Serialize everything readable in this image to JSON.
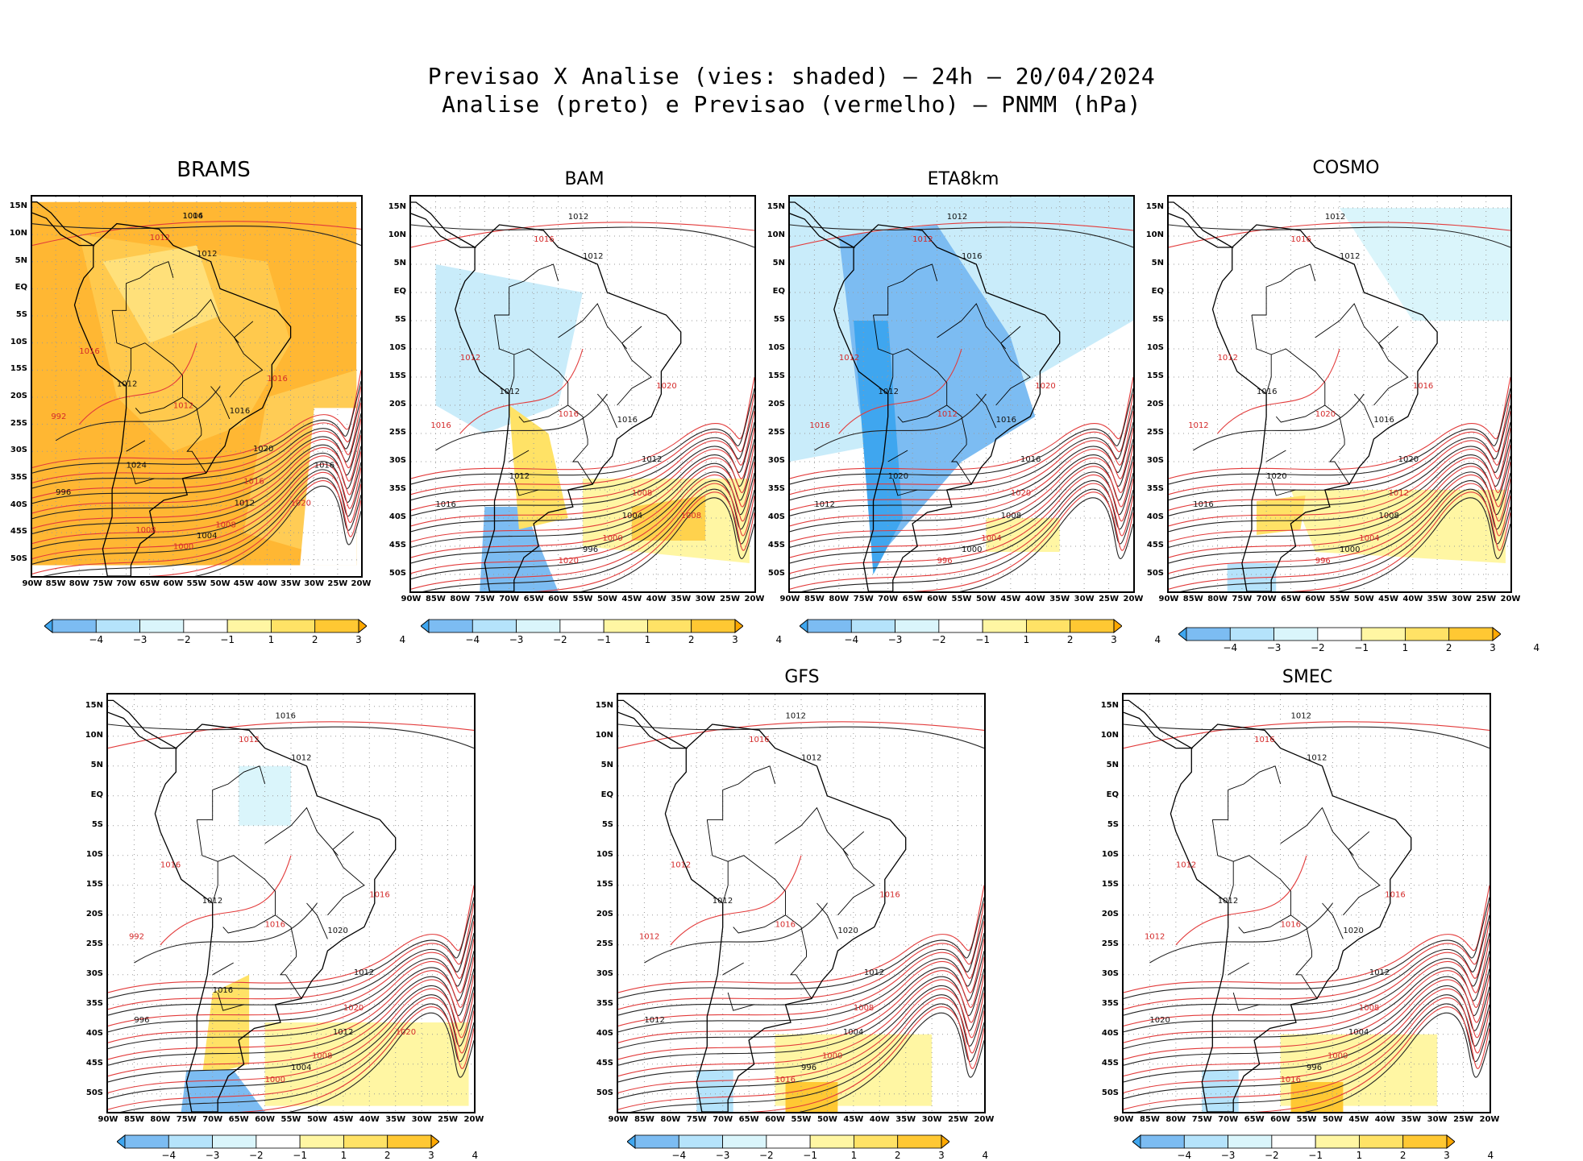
{
  "title": {
    "line1": "Previsao X Analise (vies: shaded) – 24h – 20/04/2024",
    "line2": "Analise (preto) e Previsao (vermelho) – PNMM (hPa)"
  },
  "lat_labels": [
    "15N",
    "10N",
    "5N",
    "EQ",
    "5S",
    "10S",
    "15S",
    "20S",
    "25S",
    "30S",
    "35S",
    "40S",
    "45S",
    "50S"
  ],
  "lon_labels": [
    "90W",
    "85W",
    "80W",
    "75W",
    "70W",
    "65W",
    "60W",
    "55W",
    "50W",
    "45W",
    "40W",
    "35W",
    "30W",
    "25W",
    "20W"
  ],
  "colorbar": {
    "labels": [
      "−4",
      "−3",
      "−2",
      "−1",
      "1",
      "2",
      "3",
      "4"
    ],
    "colors": [
      "#3fa6ef",
      "#7cbcf2",
      "#b5e3fb",
      "#daf5fb",
      "#ffffff",
      "#fff6a3",
      "#ffe266",
      "#ffc833",
      "#ffa800"
    ]
  },
  "panels": [
    {
      "id": "brams",
      "title": "BRAMS",
      "bias": "warm-strong",
      "isobars": [
        "1016",
        "1012",
        "1012",
        "1016",
        "1012",
        "1012",
        "1016",
        "1016",
        "1020",
        "1016",
        "1012",
        "1008",
        "1004",
        "1000",
        "996",
        "992",
        "1024",
        "1020",
        "1016",
        "1008",
        "1004"
      ]
    },
    {
      "id": "bam",
      "title": "BAM",
      "bias": "mixed-cool",
      "isobars": [
        "1012",
        "1016",
        "1012",
        "1012",
        "1012",
        "1016",
        "1016",
        "1020",
        "1012",
        "1008",
        "1004",
        "1000",
        "996",
        "1020",
        "1016",
        "1016",
        "1012",
        "1008"
      ]
    },
    {
      "id": "eta8km",
      "title": "ETA8km",
      "bias": "cool-strong",
      "isobars": [
        "1012",
        "1012",
        "1016",
        "1012",
        "1012",
        "1012",
        "1016",
        "1020",
        "1016",
        "1020",
        "1008",
        "1004",
        "1000",
        "996",
        "1012",
        "1016",
        "1020"
      ]
    },
    {
      "id": "cosmo",
      "title": "COSMO",
      "bias": "mixed",
      "isobars": [
        "1012",
        "1016",
        "1012",
        "1012",
        "1016",
        "1020",
        "1016",
        "1016",
        "1020",
        "1012",
        "1008",
        "1004",
        "1000",
        "996",
        "1016",
        "1012",
        "1020"
      ]
    },
    {
      "id": "panel5",
      "title": "",
      "bias": "mixed-light",
      "isobars": [
        "1016",
        "1012",
        "1012",
        "1016",
        "1012",
        "1016",
        "1020",
        "1016",
        "1012",
        "1020",
        "1012",
        "1008",
        "1004",
        "1000",
        "996",
        "992",
        "1016",
        "1020"
      ]
    },
    {
      "id": "gfs",
      "title": "GFS",
      "bias": "light",
      "isobars": [
        "1012",
        "1016",
        "1012",
        "1012",
        "1012",
        "1016",
        "1020",
        "1016",
        "1012",
        "1008",
        "1004",
        "1000",
        "996",
        "1016",
        "1012",
        "1012"
      ]
    },
    {
      "id": "smec",
      "title": "SMEC",
      "bias": "light",
      "isobars": [
        "1012",
        "1016",
        "1012",
        "1012",
        "1012",
        "1016",
        "1020",
        "1016",
        "1012",
        "1008",
        "1004",
        "1000",
        "996",
        "1016",
        "1020",
        "1012"
      ]
    }
  ]
}
